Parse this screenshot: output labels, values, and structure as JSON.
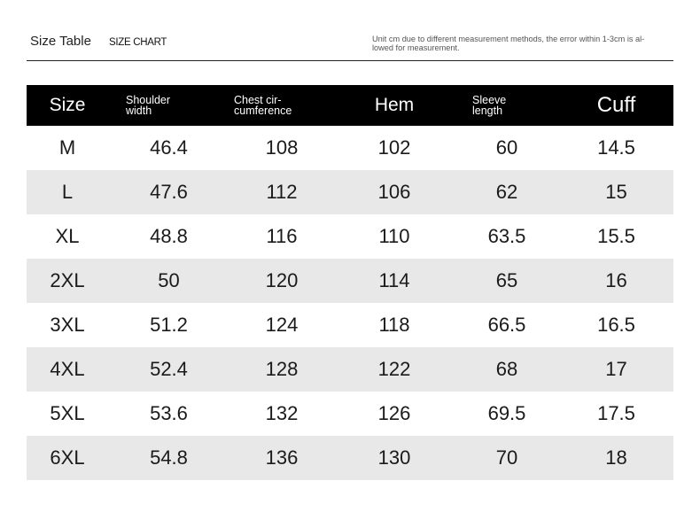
{
  "header": {
    "title": "Size Table",
    "subtitle": "SIZE CHART",
    "note": "Unit cm due to different measurement methods, the error within 1-3cm is al-\nlowed for measurement."
  },
  "table": {
    "columns": [
      "Size",
      "Shoulder\nwidth",
      "Chest cir-\ncumference",
      "Hem",
      "Sleeve\nlength",
      "Cuff"
    ],
    "rows": [
      [
        "M",
        "46.4",
        "108",
        "102",
        "60",
        "14.5"
      ],
      [
        "L",
        "47.6",
        "112",
        "106",
        "62",
        "15"
      ],
      [
        "XL",
        "48.8",
        "116",
        "110",
        "63.5",
        "15.5"
      ],
      [
        "2XL",
        "50",
        "120",
        "114",
        "65",
        "16"
      ],
      [
        "3XL",
        "51.2",
        "124",
        "118",
        "66.5",
        "16.5"
      ],
      [
        "4XL",
        "52.4",
        "128",
        "122",
        "68",
        "17"
      ],
      [
        "5XL",
        "53.6",
        "132",
        "126",
        "69.5",
        "17.5"
      ],
      [
        "6XL",
        "54.8",
        "136",
        "130",
        "70",
        "18"
      ]
    ]
  },
  "colors": {
    "header_bg": "#000000",
    "stripe": "#e8e8e8"
  }
}
